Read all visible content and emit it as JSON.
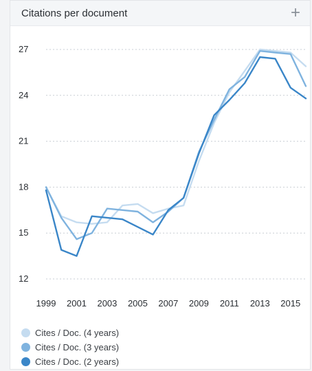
{
  "header": {
    "title": "Citations per document",
    "add_icon": "plus-icon"
  },
  "colors": {
    "series_4y": "#c5dcf0",
    "series_3y": "#7fb3df",
    "series_2y": "#3a86c8",
    "grid": "#c9ced4",
    "tick": "#2a2e33"
  },
  "chart_data": {
    "type": "line",
    "title": "Citations per document",
    "xlabel": "",
    "ylabel": "",
    "xlim": [
      1999,
      2016
    ],
    "ylim": [
      12,
      27
    ],
    "yticks": [
      12,
      15,
      18,
      21,
      24,
      27
    ],
    "xticks": [
      1999,
      2001,
      2003,
      2005,
      2007,
      2009,
      2011,
      2013,
      2015
    ],
    "x": [
      1999,
      2000,
      2001,
      2002,
      2003,
      2004,
      2005,
      2006,
      2007,
      2008,
      2009,
      2010,
      2011,
      2012,
      2013,
      2014,
      2015,
      2016
    ],
    "grid": true,
    "legend_position": "bottom",
    "series": [
      {
        "name": "Cites / Doc. (4 years)",
        "color": "#c5dcf0",
        "values": [
          18.0,
          16.1,
          15.7,
          15.6,
          15.7,
          16.8,
          16.9,
          16.3,
          16.6,
          16.8,
          19.7,
          22.2,
          24.2,
          25.6,
          27.0,
          26.9,
          26.8,
          25.9
        ]
      },
      {
        "name": "Cites / Doc. (3 years)",
        "color": "#7fb3df",
        "values": [
          18.0,
          16.0,
          14.6,
          15.0,
          16.6,
          16.5,
          16.4,
          15.7,
          16.4,
          17.3,
          20.3,
          22.4,
          24.4,
          25.2,
          26.9,
          26.8,
          26.7,
          24.6
        ]
      },
      {
        "name": "Cites / Doc. (2 years)",
        "color": "#3a86c8",
        "values": [
          17.8,
          13.9,
          13.5,
          16.1,
          16.0,
          15.9,
          15.4,
          14.9,
          16.5,
          17.3,
          20.2,
          22.7,
          23.7,
          24.8,
          26.5,
          26.4,
          24.5,
          23.8
        ]
      }
    ]
  }
}
